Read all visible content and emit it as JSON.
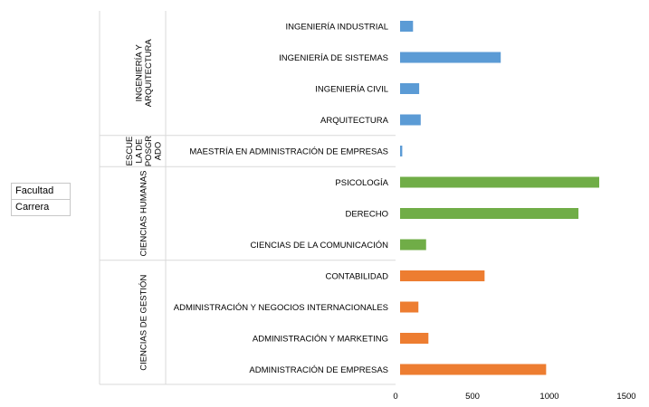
{
  "fields": {
    "facultad": "Facultad",
    "carrera": "Carrera"
  },
  "chart_data": {
    "type": "bar",
    "orientation": "horizontal",
    "title": "",
    "xlabel": "",
    "ylabel": "",
    "xlim": [
      0,
      1500
    ],
    "xticks": [
      0,
      500,
      1000,
      1500
    ],
    "grid": false,
    "groups": [
      {
        "label": "INGENIERÍA Y ARQUITECTURA",
        "color": "#5b9bd5",
        "categories": [
          "INGENIERÍA INDUSTRIAL",
          "INGENIERÍA DE SISTEMAS",
          "INGENIERÍA CIVIL",
          "ARQUITECTURA"
        ],
        "values": [
          90,
          660,
          130,
          140
        ]
      },
      {
        "label": "ESCUELA DE POSGRADO",
        "color": "#5b9bd5",
        "categories": [
          "MAESTRÍA EN ADMINISTRACIÓN DE EMPRESAS"
        ],
        "values": [
          20
        ]
      },
      {
        "label": "CIENCIAS HUMANAS",
        "color": "#70ad47",
        "categories": [
          "PSICOLOGÍA",
          "DERECHO",
          "CIENCIAS DE LA COMUNICACIÓN"
        ],
        "values": [
          1300,
          1165,
          175
        ]
      },
      {
        "label": "CIENCIAS DE GESTIÓN",
        "color": "#ed7d31",
        "categories": [
          "CONTABILIDAD",
          "ADMINISTRACIÓN Y NEGOCIOS INTERNACIONALES",
          "ADMINISTRACIÓN Y MARKETING",
          "ADMINISTRACIÓN DE EMPRESAS"
        ],
        "values": [
          555,
          125,
          190,
          955
        ]
      }
    ]
  }
}
